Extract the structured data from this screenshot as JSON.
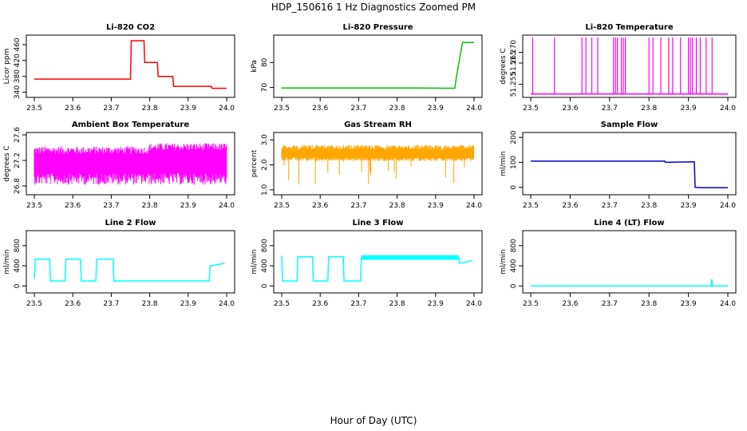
{
  "figure": {
    "title": "HDP_150616  1 Hz Diagnostics Zoomed PM",
    "xlabel": "Hour of Day (UTC)"
  },
  "chart_data": [
    {
      "type": "line",
      "title": "Li-820 CO2",
      "ylabel": "Licor ppm",
      "color": "#ff0000",
      "xlim": [
        23.5,
        24.0
      ],
      "xticks": [
        "23.5",
        "23.6",
        "23.7",
        "23.8",
        "23.9",
        "24.0"
      ],
      "ylim": [
        333,
        478
      ],
      "yticks": [
        "340",
        "380",
        "420",
        "460"
      ],
      "series": [
        {
          "x": [
            23.5,
            23.75,
            23.752,
            23.785,
            23.787,
            23.82,
            23.822,
            23.86,
            23.862,
            23.96,
            23.962,
            24.0
          ],
          "values": [
            373,
            373,
            470,
            470,
            415,
            415,
            380,
            380,
            355,
            355,
            350,
            350
          ]
        }
      ]
    },
    {
      "type": "line",
      "title": "Li-820 Pressure",
      "ylabel": "kPa",
      "color": "#00c000",
      "xlim": [
        23.5,
        24.0
      ],
      "xticks": [
        "23.5",
        "23.6",
        "23.7",
        "23.8",
        "23.9",
        "24.0"
      ],
      "ylim": [
        67,
        90
      ],
      "yticks": [
        "70",
        "80"
      ],
      "series": [
        {
          "x": [
            23.5,
            23.85,
            23.92,
            23.95,
            23.955,
            23.97,
            24.0
          ],
          "values": [
            69.8,
            69.8,
            69.7,
            69.7,
            75,
            88,
            88
          ]
        }
      ]
    },
    {
      "type": "line",
      "title": "Li-820 Temperature",
      "ylabel": "degrees C",
      "color": "#ff00ff",
      "xlim": [
        23.5,
        24.0
      ],
      "xticks": [
        "23.5",
        "23.6",
        "23.7",
        "23.8",
        "23.9",
        "24.0"
      ],
      "ylim": [
        51.25,
        51.277
      ],
      "yticks": [
        "51.255",
        "51.265",
        "51.270"
      ],
      "series": [
        {
          "x": [
            23.5,
            24.0
          ],
          "values": [
            51.2505,
            51.2505
          ]
        }
      ]
    },
    {
      "type": "line",
      "title": "Ambient Box Temperature",
      "ylabel": "degrees C",
      "color": "#ff00ff",
      "xlim": [
        23.5,
        24.0
      ],
      "xticks": [
        "23.5",
        "23.6",
        "23.7",
        "23.8",
        "23.9",
        "24.0"
      ],
      "ylim": [
        26.7,
        27.6
      ],
      "yticks": [
        "26.8",
        "27.2",
        "27.6"
      ],
      "series": [
        {
          "x": [
            23.5,
            24.0
          ],
          "values": [
            27.2,
            27.2
          ]
        }
      ]
    },
    {
      "type": "scatter",
      "title": "Gas Stream RH",
      "ylabel": "percent",
      "color": "#ffa500",
      "xlim": [
        23.5,
        24.0
      ],
      "xticks": [
        "23.5",
        "23.6",
        "23.7",
        "23.8",
        "23.9",
        "24.0"
      ],
      "ylim": [
        0.9,
        3.2
      ],
      "yticks": [
        "1.0",
        "2.0",
        "3.0"
      ],
      "series": [
        {
          "x": [
            23.5,
            24.0
          ],
          "values": [
            2.5,
            2.5
          ]
        }
      ]
    },
    {
      "type": "line",
      "title": "Sample Flow",
      "ylabel": "ml/min",
      "color": "#0000cc",
      "xlim": [
        23.5,
        24.0
      ],
      "xticks": [
        "23.5",
        "23.6",
        "23.7",
        "23.8",
        "23.9",
        "24.0"
      ],
      "ylim": [
        -20,
        210
      ],
      "yticks": [
        "0",
        "100",
        "200"
      ],
      "series": [
        {
          "x": [
            23.5,
            23.84,
            23.842,
            23.915,
            23.917,
            23.93,
            24.0
          ],
          "values": [
            105,
            105,
            100,
            102,
            0,
            -1,
            -1
          ]
        }
      ]
    },
    {
      "type": "line",
      "title": "Line 2 Flow",
      "ylabel": "ml/min",
      "color": "#00ffff",
      "xlim": [
        23.5,
        24.0
      ],
      "xticks": [
        "23.5",
        "23.6",
        "23.7",
        "23.8",
        "23.9",
        "24.0"
      ],
      "ylim": [
        -90,
        1050
      ],
      "yticks": [
        "0",
        "400",
        "800"
      ],
      "series": [
        {
          "x": [
            23.5,
            23.502,
            23.54,
            23.542,
            23.58,
            23.582,
            23.62,
            23.622,
            23.66,
            23.662,
            23.705,
            23.707,
            23.955,
            23.957,
            23.995
          ],
          "values": [
            150,
            530,
            530,
            100,
            100,
            530,
            530,
            100,
            100,
            530,
            530,
            100,
            100,
            400,
            450
          ]
        }
      ]
    },
    {
      "type": "line",
      "title": "Line 3 Flow",
      "ylabel": "ml/min",
      "color": "#00ffff",
      "xlim": [
        23.5,
        24.0
      ],
      "xticks": [
        "23.5",
        "23.6",
        "23.7",
        "23.8",
        "23.9",
        "24.0"
      ],
      "ylim": [
        -90,
        1050
      ],
      "yticks": [
        "0",
        "400",
        "800"
      ],
      "series": [
        {
          "x": [
            23.5,
            23.502,
            23.54,
            23.542,
            23.58,
            23.582,
            23.62,
            23.622,
            23.66,
            23.662,
            23.705,
            23.707,
            23.96,
            23.962,
            23.995
          ],
          "values": [
            600,
            100,
            100,
            580,
            580,
            100,
            100,
            580,
            580,
            100,
            100,
            560,
            560,
            450,
            500
          ]
        }
      ]
    },
    {
      "type": "line",
      "title": "Line 4 (LT) Flow",
      "ylabel": "ml/min",
      "color": "#00ffff",
      "xlim": [
        23.5,
        24.0
      ],
      "xticks": [
        "23.5",
        "23.6",
        "23.7",
        "23.8",
        "23.9",
        "24.0"
      ],
      "ylim": [
        -90,
        1050
      ],
      "yticks": [
        "0",
        "400",
        "800"
      ],
      "series": [
        {
          "x": [
            23.5,
            23.958,
            23.959,
            23.96,
            23.961,
            24.0
          ],
          "values": [
            0,
            0,
            120,
            120,
            0,
            0
          ]
        }
      ]
    }
  ]
}
